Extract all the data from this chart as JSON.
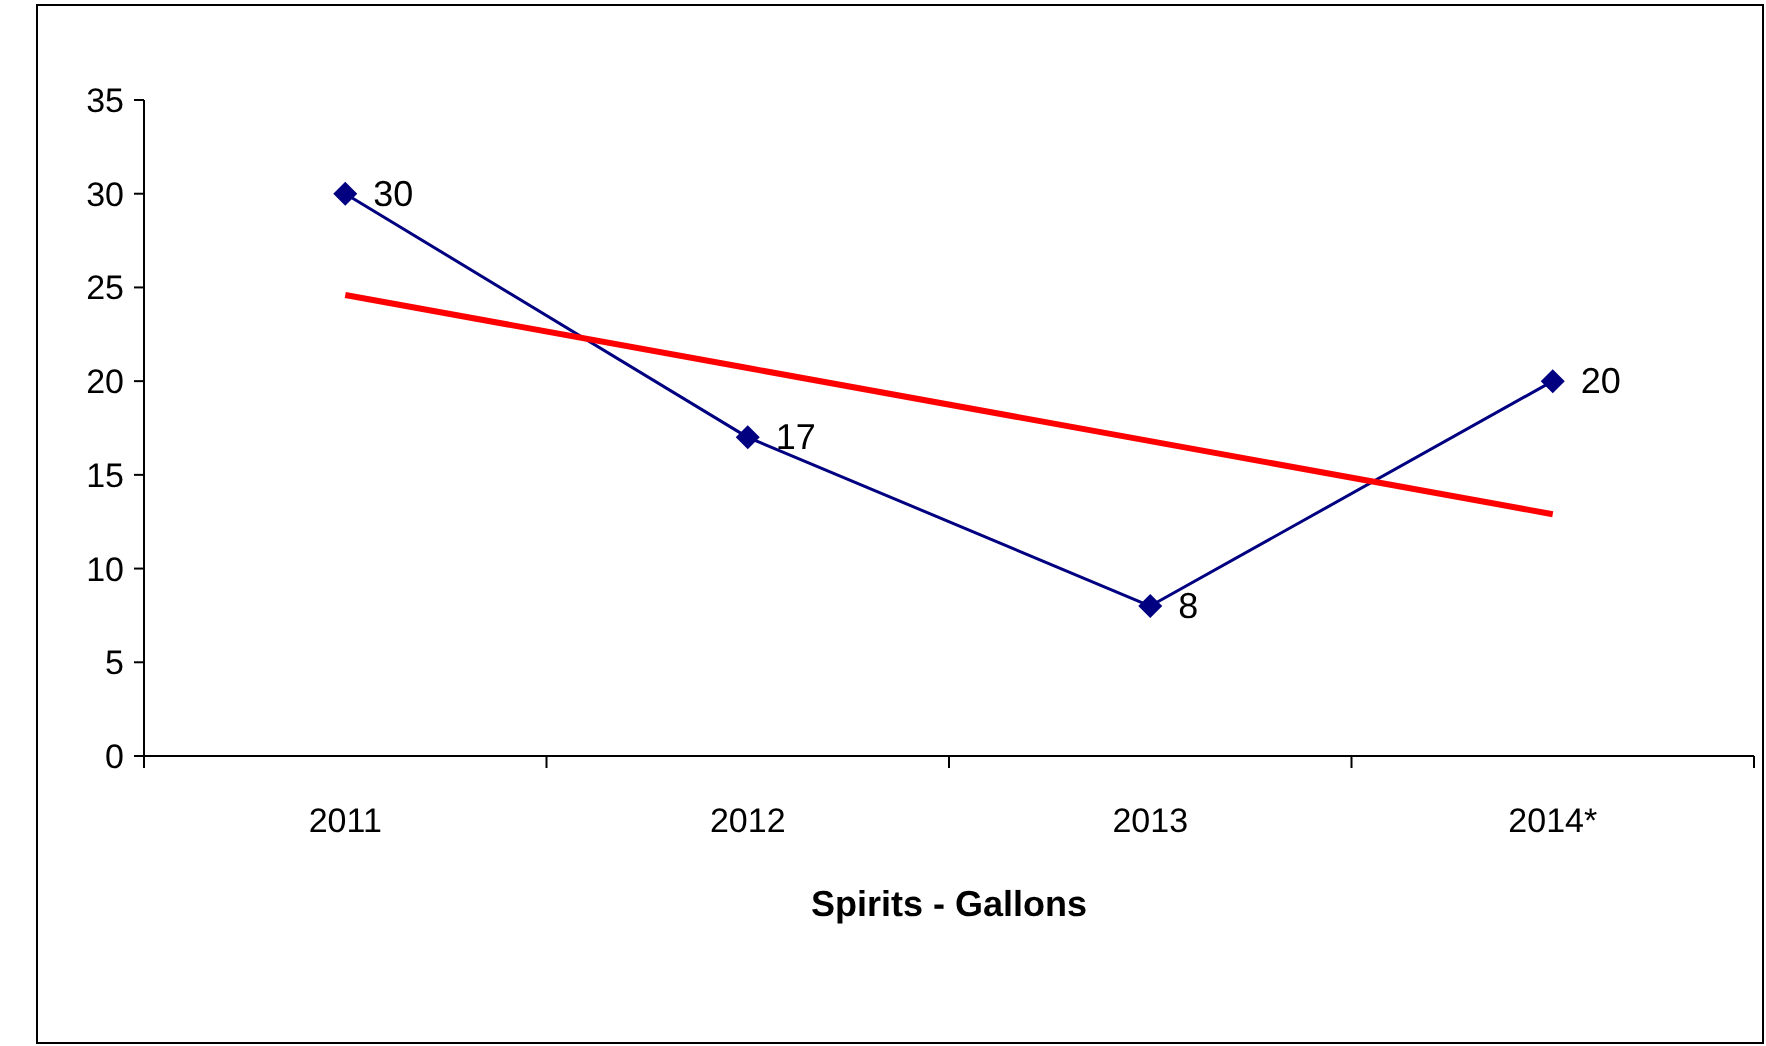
{
  "chart_data": {
    "type": "line",
    "xlabel": "Spirits - Gallons",
    "categories": [
      "2011",
      "2012",
      "2013",
      "2014*"
    ],
    "series": [
      {
        "color": "#000080",
        "values": [
          30,
          17,
          8,
          20
        ],
        "value_labels": [
          "30",
          "17",
          "8",
          "20"
        ],
        "marker": "diamond"
      },
      {
        "color": "#ff0000",
        "values": [
          24.6,
          20.7,
          16.8,
          12.9
        ],
        "marker": "none"
      }
    ],
    "ylim": [
      0,
      35
    ],
    "yticks": [
      0,
      5,
      10,
      15,
      20,
      25,
      30,
      35
    ],
    "grid": false
  }
}
